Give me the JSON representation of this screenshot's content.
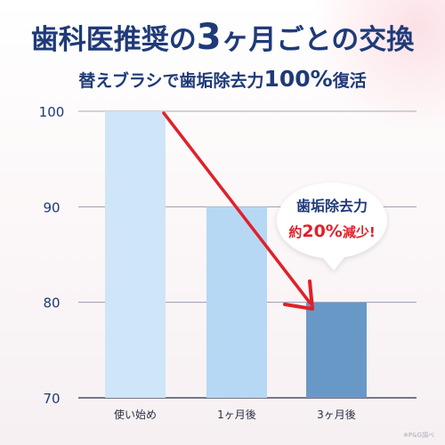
{
  "header": {
    "title_a": "歯科医推奨の",
    "title_b": "3",
    "title_c": "ヶ月ごとの交換",
    "subtitle_a": "替えブラシで歯垢除去力",
    "subtitle_b": "100%",
    "subtitle_c": "復活"
  },
  "callout": {
    "line1": "歯垢除去力",
    "line2_prefix": "約",
    "line2_value": "20%",
    "line2_suffix": "減少!"
  },
  "footnote": "※P&G調べ",
  "colors": {
    "title": "#1f3a78",
    "arrow": "#e0202a",
    "bars": [
      "#cfe5f8",
      "#b6d8f4",
      "#6899c6"
    ]
  },
  "chart_data": {
    "type": "bar",
    "categories": [
      "使い始め",
      "1ヶ月後",
      "3ヶ月後"
    ],
    "values": [
      100,
      90,
      80
    ],
    "yticks": [
      70,
      80,
      90,
      100
    ],
    "ylim": [
      70,
      100
    ],
    "grid": true,
    "annotation": "decreasing trend arrow from first to last bar"
  }
}
